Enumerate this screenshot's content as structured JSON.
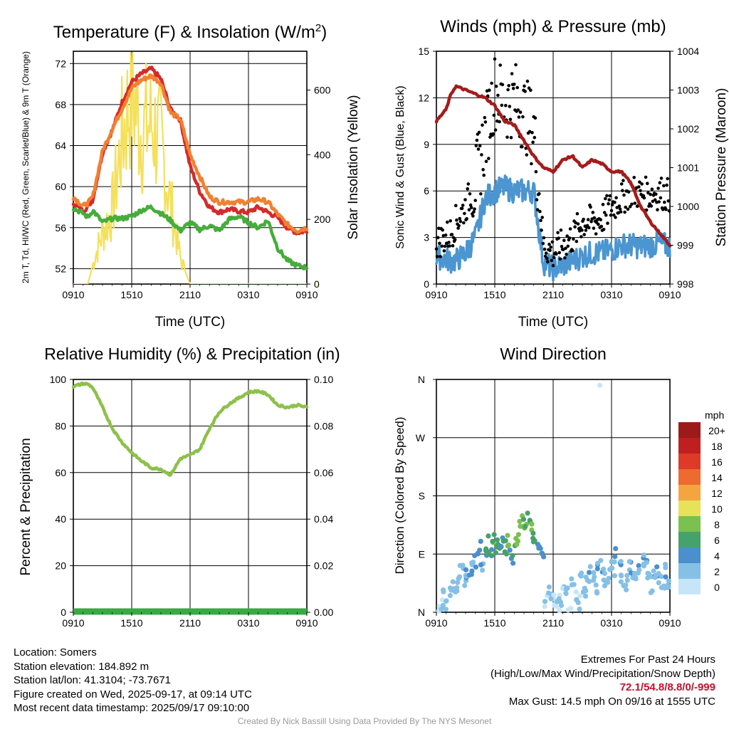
{
  "chart_data": [
    {
      "id": "temp",
      "type": "line",
      "title": "Temperature (F) & Insolation (W/m²)",
      "xlabel": "Time (UTC)",
      "ylabel_left": "2m T, Td, HI/WC (Red, Green, Scarlet/Blue) & 9m T (Orange)",
      "ylabel_right": "Solar Insolation (Yellow)",
      "x_ticks": [
        "0910",
        "1510",
        "2110",
        "0310",
        "0910"
      ],
      "ylim_left": [
        50.5,
        73.2
      ],
      "yticks_left": [
        52,
        56,
        60,
        64,
        68,
        72
      ],
      "ylim_right": [
        0,
        720
      ],
      "yticks_right": [
        0,
        200,
        400,
        600
      ],
      "x_hours": [
        0,
        1,
        1.5,
        2,
        3,
        4,
        5,
        6,
        7,
        8,
        9,
        10,
        11,
        12,
        13,
        14,
        15,
        16,
        17,
        18,
        19,
        20,
        21,
        22,
        23,
        24
      ],
      "series": [
        {
          "name": "2m T",
          "color": "#d42a2a",
          "values": [
            58.4,
            57.6,
            58.1,
            58.7,
            63.3,
            65.5,
            68.2,
            70.2,
            71.0,
            71.5,
            70.5,
            67.5,
            66.5,
            62.0,
            59.5,
            58.0,
            57.5,
            57.8,
            57.6,
            57.5,
            58.0,
            57.5,
            57.0,
            56.0,
            55.5,
            55.7
          ]
        },
        {
          "name": "9m T",
          "color": "#f28030",
          "values": [
            59.0,
            58.1,
            58.4,
            59.0,
            63.5,
            65.6,
            67.6,
            69.6,
            70.4,
            70.8,
            70.1,
            67.2,
            66.6,
            63.1,
            61.0,
            59.0,
            58.5,
            58.5,
            58.5,
            58.5,
            58.8,
            58.5,
            57.3,
            56.3,
            55.7,
            56.0
          ]
        },
        {
          "name": "2m Td",
          "color": "#46ad3c",
          "values": [
            57.9,
            57.4,
            57.0,
            57.7,
            56.5,
            56.9,
            56.9,
            57.1,
            57.7,
            58.0,
            57.4,
            56.7,
            55.7,
            56.5,
            55.8,
            56.2,
            55.7,
            56.8,
            57.1,
            56.5,
            56.0,
            56.7,
            54.0,
            52.8,
            52.3,
            52.1
          ]
        },
        {
          "name": "Solar Insolation",
          "color": "#f4e05a",
          "axis": "right",
          "values": [
            0,
            0,
            0,
            60,
            160,
            230,
            450,
            600,
            470,
            500,
            430,
            250,
            80,
            0,
            0,
            0,
            0,
            0,
            0,
            0,
            0,
            0,
            0,
            0,
            0,
            0
          ]
        }
      ]
    },
    {
      "id": "winds",
      "type": "line",
      "title": "Winds (mph) & Pressure (mb)",
      "xlabel": "Time (UTC)",
      "ylabel_left": "Sonic Wind & Gust (Blue, Black)",
      "ylabel_right": "Station Pressure (Maroon)",
      "x_ticks": [
        "0910",
        "1510",
        "2110",
        "0310",
        "0910"
      ],
      "ylim_left": [
        0,
        15
      ],
      "yticks_left": [
        0,
        3,
        6,
        9,
        12,
        15
      ],
      "ylim_right": [
        998,
        1004
      ],
      "yticks_right": [
        998,
        999,
        1000,
        1001,
        1002,
        1003,
        1004
      ],
      "x_hours": [
        0,
        1,
        1.5,
        2,
        3,
        4,
        5,
        6,
        7,
        8,
        9,
        10,
        11,
        12,
        13,
        14,
        15,
        16,
        17,
        18,
        19,
        20,
        21,
        22,
        23,
        24
      ],
      "series": [
        {
          "name": "Sonic Wind",
          "color": "#4b95d1",
          "values": [
            1.8,
            1.6,
            1.5,
            1.5,
            2.0,
            3.0,
            5.5,
            6.0,
            6.2,
            6.0,
            6.0,
            6.0,
            1.4,
            1.0,
            1.2,
            1.5,
            1.8,
            2.0,
            2.0,
            2.2,
            2.5,
            2.5,
            2.4,
            2.5,
            2.6,
            2.4
          ]
        },
        {
          "name": "Gust",
          "color": "#000000",
          "values": [
            2.7,
            3.0,
            3.3,
            4.0,
            5.0,
            6.5,
            9.5,
            12.5,
            11.5,
            12.0,
            11.0,
            10.0,
            2.5,
            2.0,
            2.5,
            3.0,
            4.0,
            4.0,
            4.2,
            5.0,
            5.5,
            6.0,
            5.8,
            5.8,
            5.9,
            5.7
          ]
        },
        {
          "name": "Station Pressure",
          "color": "#a51b1b",
          "axis": "right",
          "values": [
            1002.2,
            1002.5,
            1002.9,
            1003.1,
            1003.0,
            1002.9,
            1002.8,
            1002.6,
            1002.2,
            1002.1,
            1001.7,
            1001.3,
            1001.0,
            1000.9,
            1001.2,
            1001.3,
            1001.0,
            1001.2,
            1001.1,
            1000.9,
            1000.9,
            1000.6,
            1000.0,
            999.6,
            999.3,
            999.0
          ]
        }
      ]
    },
    {
      "id": "rh",
      "type": "line",
      "title": "Relative Humidity (%) & Precipitation (in)",
      "xlabel": "",
      "ylabel_left": "Percent & Precipitation",
      "x_ticks": [
        "0910",
        "1510",
        "2110",
        "0310",
        "0910"
      ],
      "ylim_left": [
        0,
        100
      ],
      "yticks_left": [
        0,
        20,
        40,
        60,
        80,
        100
      ],
      "ylim_right": [
        0,
        0.1
      ],
      "yticks_right": [
        "0.00",
        "0.02",
        "0.04",
        "0.06",
        "0.08",
        "0.10"
      ],
      "x_hours": [
        0,
        1,
        1.5,
        2,
        3,
        4,
        5,
        6,
        7,
        8,
        9,
        10,
        11,
        12,
        13,
        14,
        15,
        16,
        17,
        18,
        19,
        20,
        21,
        22,
        23,
        24
      ],
      "series": [
        {
          "name": "Relative Humidity",
          "color": "#8dc14a",
          "values": [
            97.0,
            98.2,
            98.0,
            96.5,
            88.0,
            79.0,
            73.0,
            68.5,
            65.0,
            62.0,
            61.5,
            59.0,
            66.0,
            67.5,
            70.0,
            79.0,
            86.0,
            89.5,
            92.0,
            94.5,
            95.0,
            93.5,
            89.0,
            88.0,
            89.0,
            88.0
          ]
        },
        {
          "name": "Precipitation",
          "color": "#3aa845",
          "values": [
            0,
            0,
            0,
            0,
            0,
            0,
            0,
            0,
            0,
            0,
            0,
            0,
            0,
            0,
            0,
            0,
            0,
            0,
            0,
            0,
            0,
            0,
            0,
            0,
            0,
            0
          ]
        }
      ]
    },
    {
      "id": "wdir",
      "type": "scatter",
      "title": "Wind Direction",
      "xlabel": "",
      "ylabel_left": "Direction (Colored By Speed)",
      "x_ticks": [
        "0910",
        "1510",
        "2110",
        "0310",
        "0910"
      ],
      "y_ticks": [
        "N",
        "E",
        "S",
        "W",
        "N"
      ],
      "ylim_deg": [
        0,
        360
      ],
      "legend_unit": "mph",
      "legend_labels": [
        "0",
        "2",
        "4",
        "6",
        "8",
        "10",
        "12",
        "14",
        "16",
        "18",
        "20+"
      ],
      "legend_colors": [
        "#c6e6f7",
        "#85c0e6",
        "#4b8fcc",
        "#45a26a",
        "#7cc050",
        "#e8e15a",
        "#f4a540",
        "#ee6a2f",
        "#dd3b28",
        "#c01f1f",
        "#9c1a1a"
      ],
      "points_hours": [
        0.2,
        0.5,
        0.8,
        1.1,
        1.4,
        1.7,
        2,
        2.3,
        2.6,
        2.9,
        3.2,
        3.5,
        3.8,
        4.1,
        4.4,
        4.7,
        5,
        5.3,
        5.6,
        5.9,
        6.2,
        6.5,
        6.8,
        7.1,
        7.4,
        7.7,
        8,
        8.3,
        8.6,
        8.9,
        9.2,
        9.5,
        9.8,
        10.1,
        10.4,
        10.7,
        11,
        11.3,
        11.6,
        11.9,
        12.2,
        12.5,
        12.8,
        13.1,
        13.4,
        13.7,
        14,
        14.3,
        14.6,
        14.9,
        15.2,
        15.5,
        15.8,
        16.1,
        16.4,
        16.7,
        17,
        17.3,
        17.6,
        17.9,
        18.2,
        18.5,
        18.8,
        19.1,
        19.4,
        19.7,
        20,
        20.3,
        20.6,
        20.9,
        21.2,
        21.5,
        21.8,
        22.1,
        22.4,
        22.7,
        23,
        23.3,
        23.6,
        23.9
      ],
      "points_deg": [
        8,
        14,
        22,
        10,
        30,
        40,
        35,
        50,
        60,
        48,
        55,
        70,
        65,
        80,
        100,
        75,
        92,
        105,
        88,
        110,
        100,
        95,
        102,
        98,
        107,
        85,
        96,
        112,
        130,
        140,
        135,
        150,
        125,
        110,
        100,
        95,
        80,
        20,
        35,
        15,
        10,
        22,
        8,
        30,
        25,
        12,
        40,
        20,
        15,
        55,
        30,
        45,
        60,
        50,
        38,
        65,
        70,
        52,
        48,
        75,
        68,
        90,
        80,
        60,
        40,
        55,
        72,
        65,
        45,
        62,
        78,
        70,
        50,
        42,
        58,
        66,
        55,
        48,
        62,
        50
      ],
      "points_mph": [
        1,
        1,
        1.5,
        1,
        2,
        2,
        1.5,
        2,
        2.5,
        2,
        3,
        3,
        2.5,
        4,
        4,
        3,
        5,
        6,
        5,
        7,
        6,
        6,
        5,
        6,
        7,
        4,
        6,
        8,
        8,
        7,
        7,
        6,
        7,
        6,
        5,
        4,
        3,
        1,
        1.5,
        1,
        1,
        1,
        1,
        1,
        1.5,
        1,
        2,
        1,
        1,
        2,
        2,
        2,
        3,
        2,
        2,
        3,
        3,
        2,
        2,
        3,
        3,
        3,
        3,
        2,
        2,
        2,
        3,
        3,
        2,
        3,
        3,
        3,
        2,
        2,
        3,
        3,
        2,
        2,
        3,
        2
      ],
      "isolated_point": {
        "hour": 16.8,
        "deg": 351,
        "mph": 0
      }
    }
  ],
  "info_left": {
    "location": "Location: Somers",
    "elevation": "Station elevation: 184.892 m",
    "latlon": "Station lat/lon: 41.3104; -73.7671",
    "created": "Figure created on Wed, 2025-09-17, at 09:14 UTC",
    "recent": "Most recent data timestamp: 2025/09/17 09:10:00"
  },
  "info_right": {
    "line1": "Extremes For Past 24 Hours",
    "line2": "(High/Low/Max Wind/Precipitation/Snow Depth)",
    "values": "72.1/54.8/8.8/0/-999",
    "gust": "Max Gust: 14.5 mph On 09/16 at 1555 UTC"
  },
  "credit": "Created By Nick Bassill Using Data Provided By The NYS Mesonet"
}
